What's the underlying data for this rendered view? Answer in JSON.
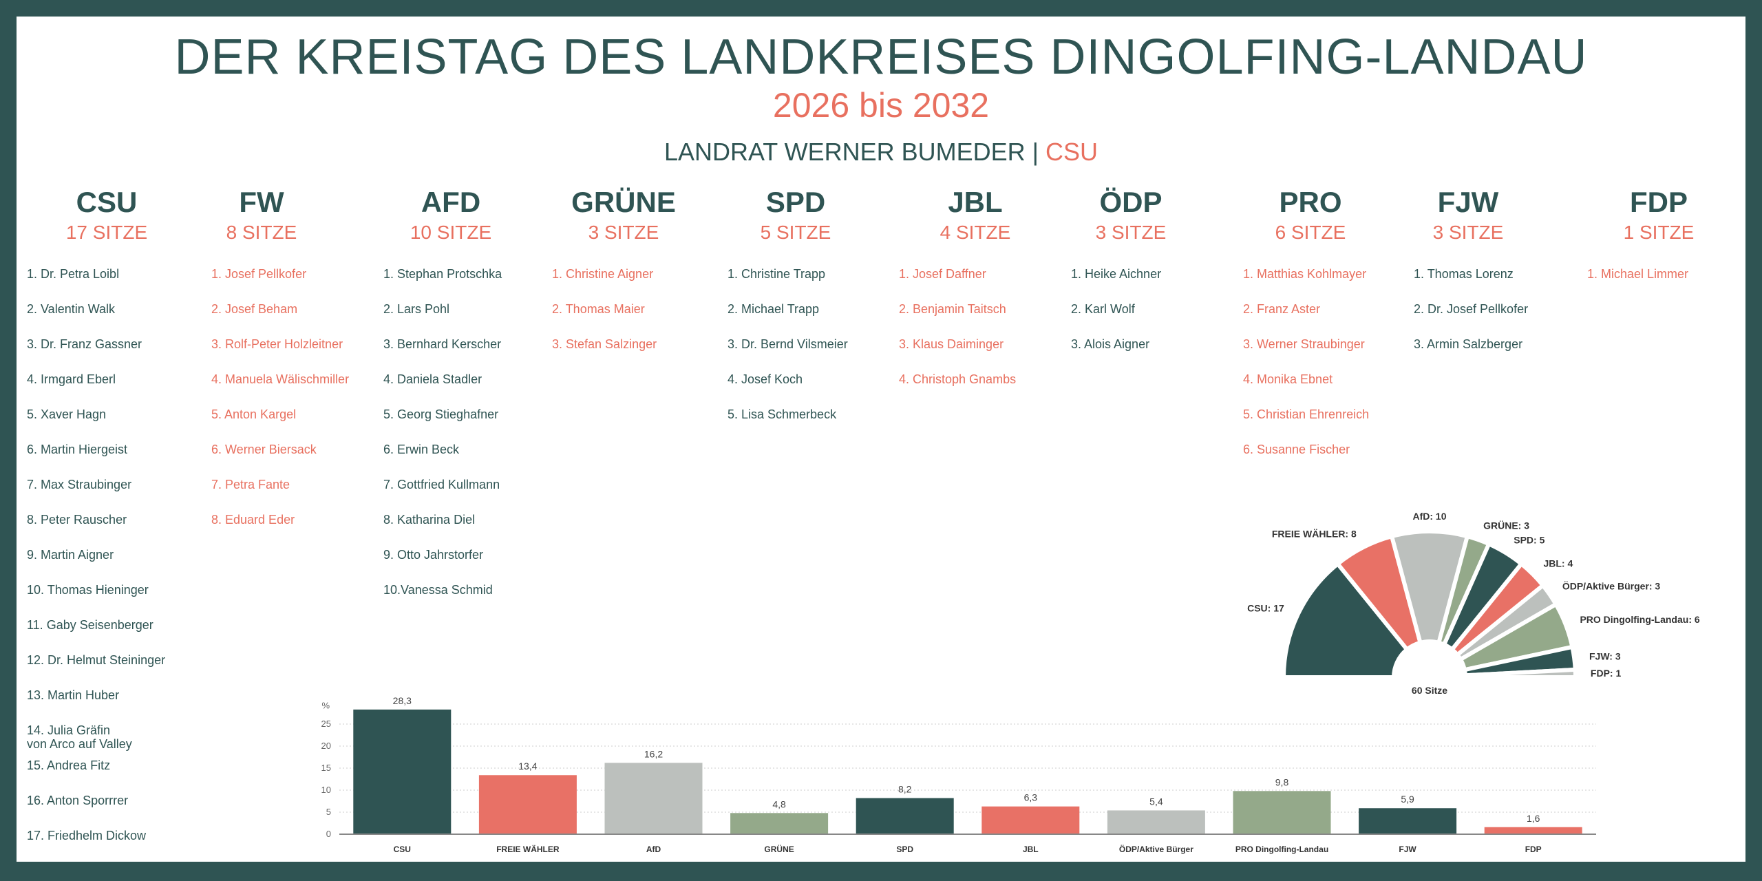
{
  "header": {
    "title": "DER KREISTAG DES LANDKREISES DINGOLFING-LANDAU",
    "subtitle": "2026 bis 2032",
    "landrat": "LANDRAT WERNER BUMEDER",
    "separator": "|",
    "landrat_party": "CSU"
  },
  "parties": [
    {
      "name": "CSU",
      "seats": "17 SITZE",
      "members": [
        "1. Dr. Petra Loibl",
        "2. Valentin Walk",
        "3. Dr. Franz Gassner",
        "4. Irmgard Eberl",
        "5. Xaver Hagn",
        "6. Martin Hiergeist",
        "7. Max Straubinger",
        "8. Peter Rauscher",
        "9. Martin Aigner",
        "10.    Thomas Hieninger",
        "11.    Gaby Seisenberger",
        "12.    Dr. Helmut Steininger",
        "13.    Martin Huber",
        "14.    Julia Gräfin\n         von Arco auf Valley",
        "15.    Andrea Fitz",
        "16.    Anton Sporrrer",
        "17.    Friedhelm Dickow"
      ]
    },
    {
      "name": "FW",
      "seats": "8 SITZE",
      "members": [
        "1. Josef Pellkofer",
        "2. Josef Beham",
        "3. Rolf-Peter Holzleitner",
        "4. Manuela Wälischmiller",
        "5. Anton Kargel",
        "6. Werner Biersack",
        "7.  Petra Fante",
        "8. Eduard Eder"
      ]
    },
    {
      "name": "AFD",
      "seats": "10 SITZE",
      "members": [
        "1. Stephan Protschka",
        "2. Lars Pohl",
        "3. Bernhard Kerscher",
        "4. Daniela Stadler",
        "5. Georg Stieghafner",
        "6. Erwin Beck",
        "7.  Gottfried Kullmann",
        "8. Katharina Diel",
        "9. Otto Jahrstorfer",
        "10.Vanessa Schmid"
      ]
    },
    {
      "name": "GRÜNE",
      "seats": "3 SITZE",
      "members": [
        "1. Christine Aigner",
        "2. Thomas Maier",
        "3. Stefan Salzinger"
      ]
    },
    {
      "name": "SPD",
      "seats": "5 SITZE",
      "members": [
        "1. Christine Trapp",
        "2. Michael Trapp",
        "3. Dr. Bernd Vilsmeier",
        "4. Josef Koch",
        "5. Lisa Schmerbeck"
      ]
    },
    {
      "name": "JBL",
      "seats": "4 SITZE",
      "members": [
        "1. Josef Daffner",
        "2. Benjamin Taitsch",
        "3. Klaus Daiminger",
        "4. Christoph Gnambs"
      ]
    },
    {
      "name": "ÖDP",
      "seats": "3 SITZE",
      "members": [
        "1. Heike Aichner",
        "2. Karl Wolf",
        "3. Alois Aigner"
      ]
    },
    {
      "name": "PRO",
      "seats": "6 SITZE",
      "members": [
        "1. Matthias Kohlmayer",
        "2. Franz Aster",
        "3. Werner Straubinger",
        "4. Monika Ebnet",
        "5. Christian Ehrenreich",
        "6. Susanne Fischer"
      ]
    },
    {
      "name": "FJW",
      "seats": "3 SITZE",
      "members": [
        "1. Thomas Lorenz",
        "2. Dr. Josef Pellkofer",
        "3. Armin Salzberger"
      ]
    },
    {
      "name": "FDP",
      "seats": "1 SITZE",
      "members": [
        "1. Michael Limmer"
      ]
    }
  ],
  "colors": {
    "dark": "#2f5453",
    "salmon": "#e87166",
    "gray": "#bcc0bd",
    "green": "#94a98a"
  },
  "chart_data": [
    {
      "type": "pie",
      "title": "",
      "center_label": "60 Sitze",
      "categories": [
        "CSU",
        "FREIE WÄHLER",
        "AfD",
        "GRÜNE",
        "SPD",
        "JBL",
        "ÖDP/Aktive Bürger",
        "PRO Dingolfing-Landau",
        "FJW",
        "FDP"
      ],
      "values": [
        17,
        8,
        10,
        3,
        5,
        4,
        3,
        6,
        3,
        1
      ],
      "colors": [
        "#2f5453",
        "#e87166",
        "#bcc0bd",
        "#94a98a",
        "#2f5453",
        "#e87166",
        "#bcc0bd",
        "#94a98a",
        "#2f5453",
        "#bcc0bd"
      ]
    },
    {
      "type": "bar",
      "title": "",
      "ylabel": "%",
      "xlabel": "",
      "ylim": [
        0,
        30
      ],
      "yticks": [
        0,
        5,
        10,
        15,
        20,
        25
      ],
      "grid": true,
      "categories": [
        "CSU",
        "FREIE WÄHLER",
        "AfD",
        "GRÜNE",
        "SPD",
        "JBL",
        "ÖDP/Aktive Bürger",
        "PRO Dingolfing-Landau",
        "FJW",
        "FDP"
      ],
      "values": [
        28.3,
        13.4,
        16.2,
        4.8,
        8.2,
        6.3,
        5.4,
        9.8,
        5.9,
        1.6
      ],
      "value_labels": [
        "28,3",
        "13,4",
        "16,2",
        "4,8",
        "8,2",
        "6,3",
        "5,4",
        "9,8",
        "5,9",
        "1,6"
      ],
      "colors": [
        "#2f5453",
        "#e87166",
        "#bcc0bd",
        "#94a98a",
        "#2f5453",
        "#e87166",
        "#bcc0bd",
        "#94a98a",
        "#2f5453",
        "#e87166"
      ]
    }
  ]
}
